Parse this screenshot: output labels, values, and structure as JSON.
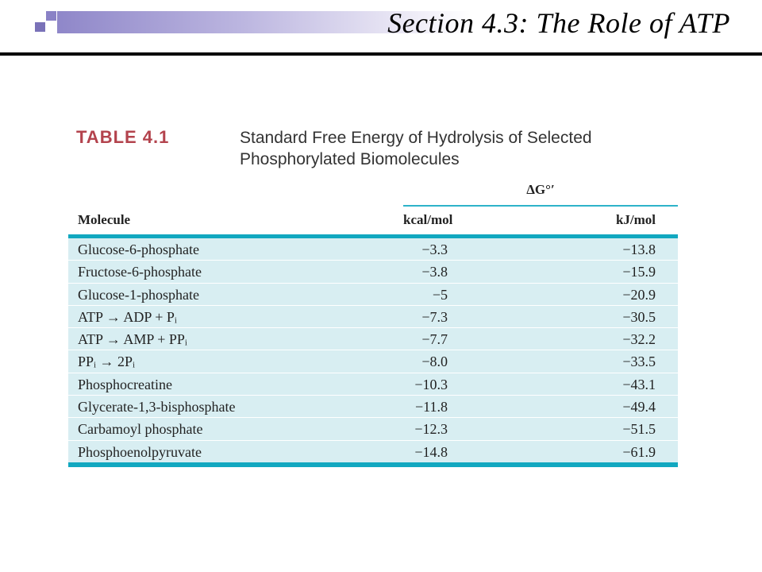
{
  "slide": {
    "title": "Section 4.3: The Role of ATP"
  },
  "table": {
    "label": "TABLE 4.1",
    "caption": "Standard Free Energy of Hydrolysis of Selected Phosphorylated Biomolecules",
    "group_header": "ΔG°′",
    "columns": {
      "molecule": "Molecule",
      "kcal": "kcal/mol",
      "kj": "kJ/mol"
    },
    "rows": [
      {
        "molecule": "Glucose-6-phosphate",
        "kcal": "−3.3",
        "kj": "−13.8"
      },
      {
        "molecule": "Fructose-6-phosphate",
        "kcal": "−3.8",
        "kj": "−15.9"
      },
      {
        "molecule": "Glucose-1-phosphate",
        "kcal": "−5",
        "kj": "−20.9"
      },
      {
        "molecule": "ATP → ADP + Pᵢ",
        "kcal": "−7.3",
        "kj": "−30.5"
      },
      {
        "molecule": "ATP → AMP + PPᵢ",
        "kcal": "−7.7",
        "kj": "−32.2"
      },
      {
        "molecule": "PPᵢ → 2Pᵢ",
        "kcal": "−8.0",
        "kj": "−33.5"
      },
      {
        "molecule": "Phosphocreatine",
        "kcal": "−10.3",
        "kj": "−43.1"
      },
      {
        "molecule": "Glycerate-1,3-bisphosphate",
        "kcal": "−11.8",
        "kj": "−49.4"
      },
      {
        "molecule": "Carbamoyl phosphate",
        "kcal": "−12.3",
        "kj": "−51.5"
      },
      {
        "molecule": "Phosphoenolpyruvate",
        "kcal": "−14.8",
        "kj": "−61.9"
      }
    ]
  },
  "colors": {
    "accent": "#12a8c0",
    "row_fill": "#d8eef2",
    "label_red": "#b3434d",
    "header_bar": "#8f87c9"
  }
}
